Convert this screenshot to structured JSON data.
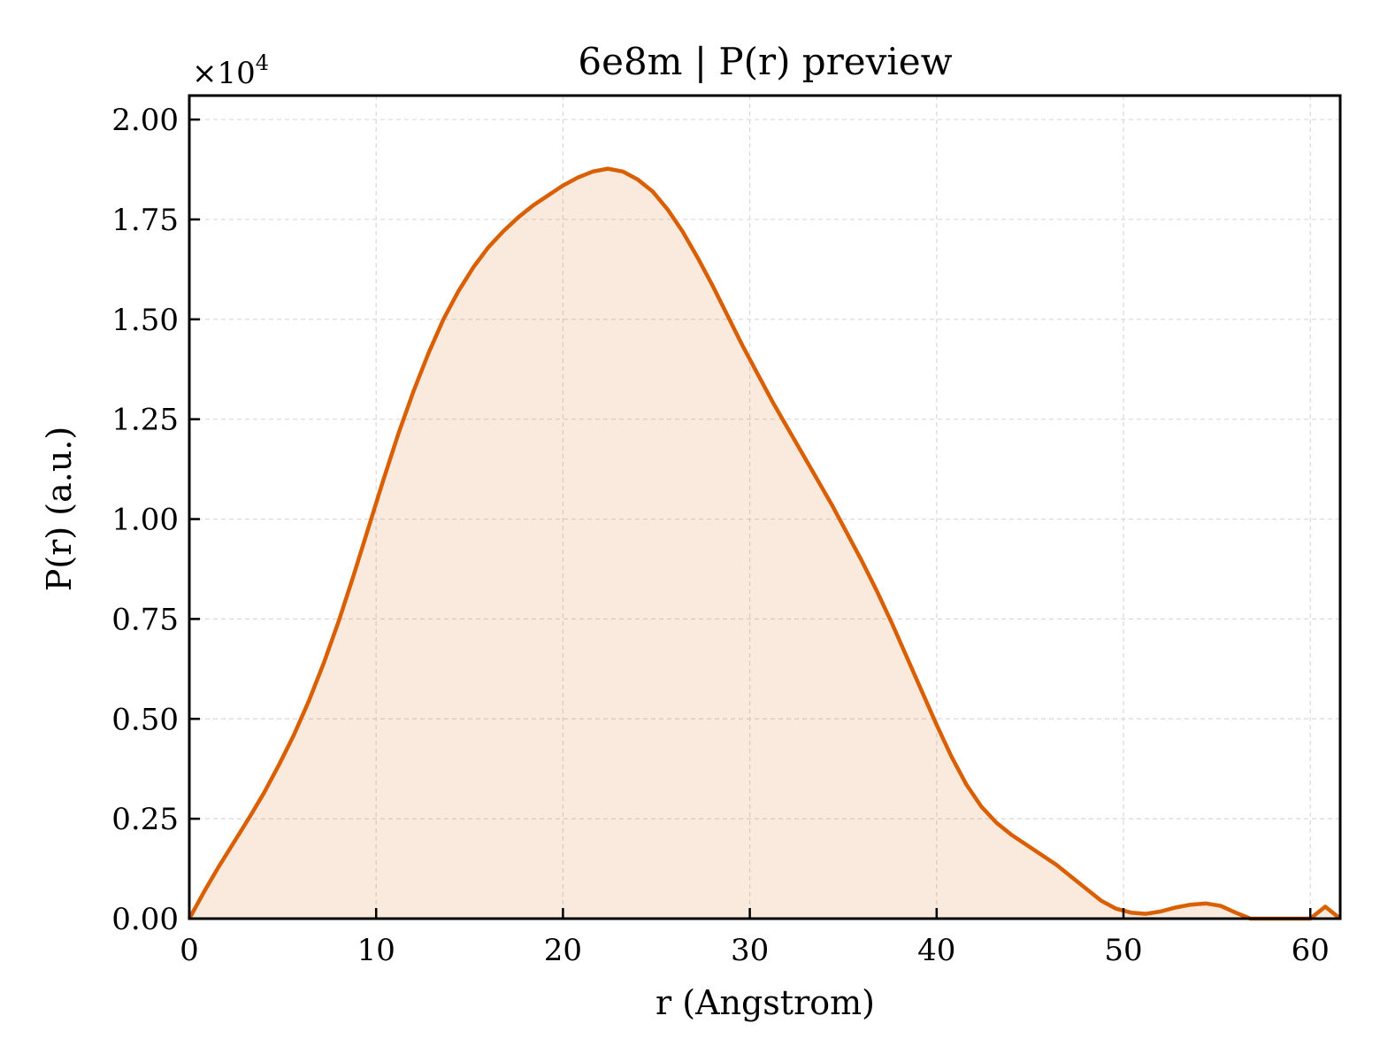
{
  "chart_data": {
    "type": "area",
    "title": "6e8m | P(r) preview",
    "xlabel": "r (Angstrom)",
    "ylabel": "P(r) (a.u.)",
    "y_offset_label": "×10",
    "y_offset_exponent": "4",
    "xlim": [
      0,
      61.6
    ],
    "ylim": [
      0,
      20600
    ],
    "x_ticks": [
      0,
      10,
      20,
      30,
      40,
      50,
      60
    ],
    "x_tick_labels": [
      "0",
      "10",
      "20",
      "30",
      "40",
      "50",
      "60"
    ],
    "y_ticks": [
      0,
      2500,
      5000,
      7500,
      10000,
      12500,
      15000,
      17500,
      20000
    ],
    "y_tick_labels": [
      "0.00",
      "0.25",
      "0.50",
      "0.75",
      "1.00",
      "1.25",
      "1.50",
      "1.75",
      "2.00"
    ],
    "grid": true,
    "legend": "none",
    "colors": {
      "line": "#d95f02",
      "fill": "#d95f02",
      "fill_opacity": 0.13,
      "grid": "#d9d9d9"
    },
    "series": [
      {
        "x": [
          0,
          0.8,
          1.6,
          2.4,
          3.2,
          4.0,
          4.8,
          5.6,
          6.4,
          7.2,
          8.0,
          8.8,
          9.6,
          10.4,
          11.2,
          12.0,
          12.8,
          13.6,
          14.4,
          15.2,
          16.0,
          16.8,
          17.6,
          18.4,
          19.2,
          20.0,
          20.8,
          21.6,
          22.4,
          23.2,
          24.0,
          24.8,
          25.6,
          26.4,
          27.2,
          28.0,
          28.8,
          29.6,
          30.4,
          31.2,
          32.0,
          32.8,
          33.6,
          34.4,
          35.2,
          36.0,
          36.8,
          37.6,
          38.4,
          39.2,
          40.0,
          40.8,
          41.6,
          42.4,
          43.2,
          44.0,
          44.8,
          45.6,
          46.4,
          47.2,
          48.0,
          48.8,
          49.6,
          50.4,
          51.2,
          52.0,
          52.8,
          53.6,
          54.4,
          55.2,
          56.0,
          56.8,
          57.6,
          58.4,
          59.2,
          60.0,
          60.8,
          61.6
        ],
        "y": [
          0,
          680,
          1320,
          1920,
          2520,
          3150,
          3850,
          4600,
          5450,
          6400,
          7450,
          8600,
          9800,
          11000,
          12150,
          13200,
          14150,
          15000,
          15700,
          16300,
          16800,
          17200,
          17550,
          17850,
          18100,
          18350,
          18550,
          18700,
          18770,
          18700,
          18500,
          18200,
          17750,
          17200,
          16550,
          15850,
          15100,
          14350,
          13650,
          12950,
          12300,
          11650,
          11000,
          10350,
          9650,
          8950,
          8200,
          7400,
          6550,
          5700,
          4850,
          4050,
          3350,
          2800,
          2400,
          2100,
          1850,
          1600,
          1350,
          1050,
          750,
          450,
          250,
          150,
          120,
          180,
          280,
          350,
          380,
          320,
          150,
          0,
          0,
          0,
          0,
          0,
          300,
          0
        ]
      }
    ]
  }
}
